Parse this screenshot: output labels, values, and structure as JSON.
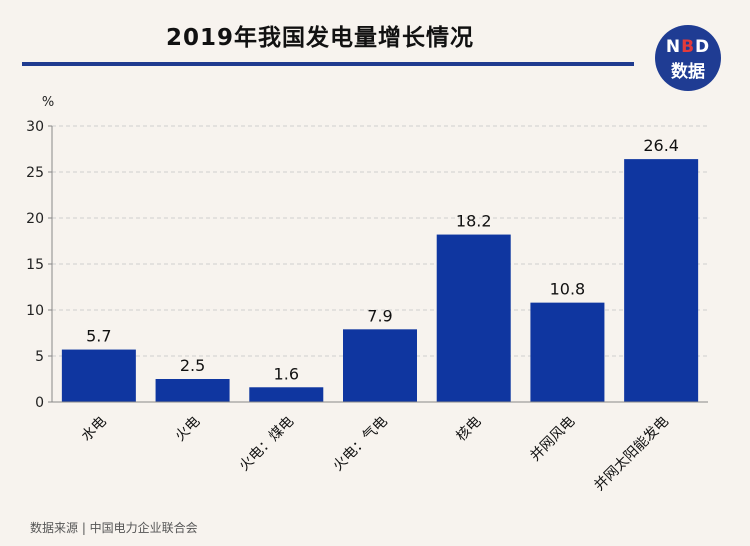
{
  "header": {
    "title": "2019年我国发电量增长情况"
  },
  "logo": {
    "line1_left": "N",
    "line1_accent": "B",
    "line1_right": "D",
    "line2": "数据",
    "colors": {
      "bg": "#1f3c93",
      "accent": "#e23b3b"
    }
  },
  "footer": {
    "source": "数据来源 | 中国电力企业联合会"
  },
  "chart_data": {
    "type": "bar",
    "title": "2019年我国发电量增长情况",
    "ylabel": "%",
    "xlabel": "",
    "ylim": [
      0,
      30
    ],
    "yticks": [
      0,
      5,
      10,
      15,
      20,
      25,
      30
    ],
    "grid": true,
    "categories": [
      "水电",
      "火电",
      "火电：煤电",
      "火电：气电",
      "核电",
      "并网风电",
      "并网太阳能发电"
    ],
    "values": [
      5.7,
      2.5,
      1.6,
      7.9,
      18.2,
      10.8,
      26.4
    ],
    "value_labels": [
      "5.7",
      "2.5",
      "1.6",
      "7.9",
      "18.2",
      "10.8",
      "26.4"
    ],
    "bar_color": "#0f36a0"
  }
}
